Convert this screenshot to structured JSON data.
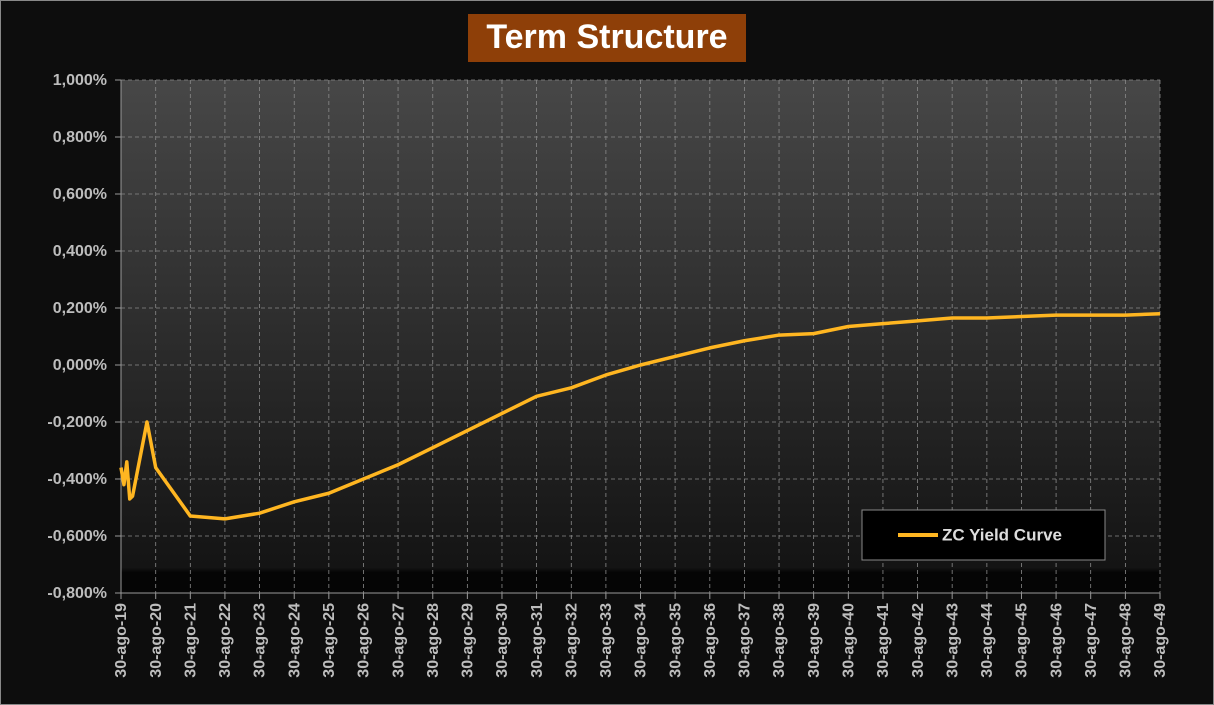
{
  "chart_data": {
    "type": "line",
    "title": "Term Structure",
    "x": [
      "2019-08-30",
      "2019-09-30",
      "2019-10-30",
      "2019-11-30",
      "2019-12-30",
      "2020-05-30",
      "2020-08-30",
      "2021-08-30",
      "2022-08-30",
      "2023-08-30",
      "2024-08-30",
      "2025-08-30",
      "2026-08-30",
      "2027-08-30",
      "2028-08-30",
      "2029-08-30",
      "2030-08-30",
      "2031-08-30",
      "2032-08-30",
      "2033-08-30",
      "2034-08-30",
      "2035-08-30",
      "2036-08-30",
      "2037-08-30",
      "2038-08-30",
      "2039-08-30",
      "2040-08-30",
      "2041-08-30",
      "2042-08-30",
      "2043-08-30",
      "2044-08-30",
      "2045-08-30",
      "2046-08-30",
      "2047-08-30",
      "2048-08-30",
      "2049-08-30"
    ],
    "series": [
      {
        "name": "ZC Yield Curve",
        "color": "#ffb621",
        "values": [
          -0.36,
          -0.42,
          -0.34,
          -0.47,
          -0.46,
          -0.2,
          -0.36,
          -0.53,
          -0.54,
          -0.52,
          -0.48,
          -0.45,
          -0.4,
          -0.35,
          -0.29,
          -0.23,
          -0.17,
          -0.11,
          -0.08,
          -0.035,
          0,
          0.03,
          0.06,
          0.085,
          0.105,
          0.11,
          0.135,
          0.145,
          0.155,
          0.165,
          0.165,
          0.17,
          0.175,
          0.175,
          0.175,
          0.18
        ]
      }
    ],
    "xlim": [
      "2019-08-30",
      "2049-08-30"
    ],
    "xticks": [
      {
        "value": "2019-08-30",
        "label": "30-ago-19"
      },
      {
        "value": "2020-08-30",
        "label": "30-ago-20"
      },
      {
        "value": "2021-08-30",
        "label": "30-ago-21"
      },
      {
        "value": "2022-08-30",
        "label": "30-ago-22"
      },
      {
        "value": "2023-08-30",
        "label": "30-ago-23"
      },
      {
        "value": "2024-08-30",
        "label": "30-ago-24"
      },
      {
        "value": "2025-08-30",
        "label": "30-ago-25"
      },
      {
        "value": "2026-08-30",
        "label": "30-ago-26"
      },
      {
        "value": "2027-08-30",
        "label": "30-ago-27"
      },
      {
        "value": "2028-08-30",
        "label": "30-ago-28"
      },
      {
        "value": "2029-08-30",
        "label": "30-ago-29"
      },
      {
        "value": "2030-08-30",
        "label": "30-ago-30"
      },
      {
        "value": "2031-08-30",
        "label": "30-ago-31"
      },
      {
        "value": "2032-08-30",
        "label": "30-ago-32"
      },
      {
        "value": "2033-08-30",
        "label": "30-ago-33"
      },
      {
        "value": "2034-08-30",
        "label": "30-ago-34"
      },
      {
        "value": "2035-08-30",
        "label": "30-ago-35"
      },
      {
        "value": "2036-08-30",
        "label": "30-ago-36"
      },
      {
        "value": "2037-08-30",
        "label": "30-ago-37"
      },
      {
        "value": "2038-08-30",
        "label": "30-ago-38"
      },
      {
        "value": "2039-08-30",
        "label": "30-ago-39"
      },
      {
        "value": "2040-08-30",
        "label": "30-ago-40"
      },
      {
        "value": "2041-08-30",
        "label": "30-ago-41"
      },
      {
        "value": "2042-08-30",
        "label": "30-ago-42"
      },
      {
        "value": "2043-08-30",
        "label": "30-ago-43"
      },
      {
        "value": "2044-08-30",
        "label": "30-ago-44"
      },
      {
        "value": "2045-08-30",
        "label": "30-ago-45"
      },
      {
        "value": "2046-08-30",
        "label": "30-ago-46"
      },
      {
        "value": "2047-08-30",
        "label": "30-ago-47"
      },
      {
        "value": "2048-08-30",
        "label": "30-ago-48"
      },
      {
        "value": "2049-08-30",
        "label": "30-ago-49"
      }
    ],
    "ylim": [
      -0.8,
      1.0
    ],
    "yticks": [
      {
        "value": -0.8,
        "label": "-0,800%"
      },
      {
        "value": -0.6,
        "label": "-0,600%"
      },
      {
        "value": -0.4,
        "label": "-0,400%"
      },
      {
        "value": -0.2,
        "label": "-0,200%"
      },
      {
        "value": 0,
        "label": "0,000%"
      },
      {
        "value": 0.2,
        "label": "0,200%"
      },
      {
        "value": 0.4,
        "label": "0,400%"
      },
      {
        "value": 0.6,
        "label": "0,600%"
      },
      {
        "value": 0.8,
        "label": "0,800%"
      },
      {
        "value": 1.0,
        "label": "1,000%"
      }
    ],
    "grid": true
  }
}
